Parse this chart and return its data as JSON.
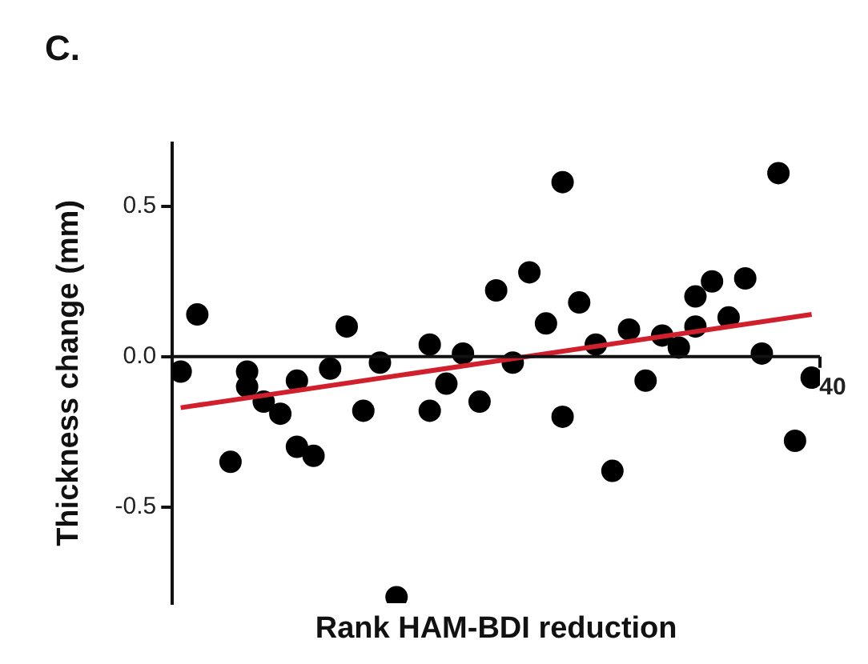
{
  "chart_data": {
    "type": "scatter",
    "title": "C.",
    "xlabel": "Rank HAM-BDI reduction",
    "ylabel": "Thickness change (mm)",
    "categories": [
      null,
      null,
      null,
      null,
      null,
      null,
      null,
      null,
      null,
      null,
      null,
      null,
      null,
      null,
      null,
      null,
      null,
      null,
      null,
      null,
      null,
      null,
      null,
      null,
      null,
      null,
      null,
      null,
      null,
      null,
      null,
      null,
      null,
      null,
      null,
      null,
      null,
      null,
      null
    ],
    "ylim": [
      -0.82,
      0.71
    ],
    "yticks": [
      {
        "value": 0.5,
        "label": "0.5"
      },
      {
        "value": 0,
        "label": "0.0"
      },
      {
        "value": -0.5,
        "label": "-0.5"
      }
    ],
    "annotations": [
      "40"
    ],
    "ref_lines": [
      {
        "axis": "y",
        "value": 0,
        "color": "#111111"
      }
    ],
    "grid": false,
    "legend": false,
    "marker": "circle",
    "series": [
      {
        "color": "#000000",
        "values": [
          -0.05,
          0.14,
          null,
          -0.35,
          -0.05,
          -0.15,
          -0.19,
          -0.08,
          -0.33,
          -0.04,
          0.1,
          -0.18,
          -0.02,
          -0.8,
          null,
          0.04,
          -0.09,
          0.01,
          -0.15,
          0.22,
          -0.02,
          0.28,
          0.11,
          0.58,
          0.18,
          0.04,
          -0.38,
          0.09,
          -0.08,
          0.07,
          0.03,
          0.2,
          0.25,
          0.13,
          0.26,
          0.01,
          0.61,
          -0.28,
          -0.07
        ]
      },
      {
        "color": "#000000",
        "values": [
          null,
          null,
          null,
          null,
          -0.1,
          null,
          null,
          -0.3,
          null,
          null,
          null,
          null,
          null,
          null,
          null,
          -0.18,
          null,
          null,
          null,
          null,
          null,
          null,
          null,
          -0.2,
          null,
          null,
          null,
          null,
          null,
          null,
          null,
          0.1,
          null,
          null,
          null,
          null,
          null,
          null,
          null
        ]
      },
      {
        "type": "line",
        "color": "#d0202e",
        "line_style": "solid",
        "marker": "none",
        "values": [
          -0.17,
          null,
          null,
          null,
          null,
          null,
          null,
          null,
          null,
          null,
          null,
          null,
          null,
          null,
          null,
          null,
          null,
          null,
          null,
          null,
          null,
          null,
          null,
          null,
          null,
          null,
          null,
          null,
          null,
          null,
          null,
          null,
          null,
          null,
          null,
          null,
          null,
          null,
          0.14
        ]
      }
    ]
  }
}
